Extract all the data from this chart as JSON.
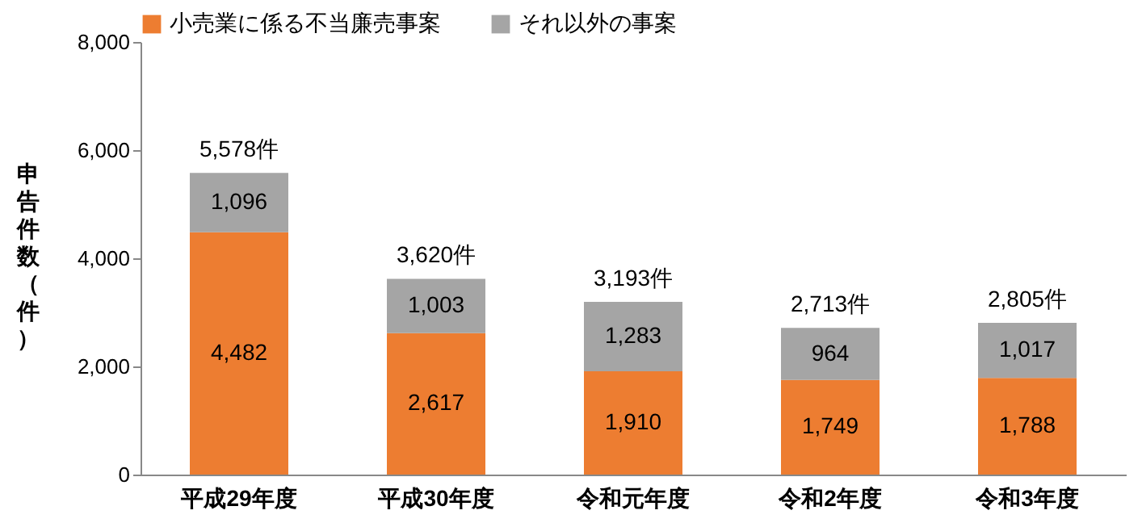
{
  "chart_data": {
    "type": "bar",
    "stacked": true,
    "ylabel": "申告件数（件）",
    "categories": [
      "平成29年度",
      "平成30年度",
      "令和元年度",
      "令和2年度",
      "令和3年度"
    ],
    "series": [
      {
        "name": "小売業に係る不当廉売事案",
        "color": "#ed7d31",
        "values": [
          4482,
          2617,
          1910,
          1749,
          1788
        ],
        "value_labels": [
          "4,482",
          "2,617",
          "1,910",
          "1,749",
          "1,788"
        ]
      },
      {
        "name": "それ以外の事案",
        "color": "#a5a5a5",
        "values": [
          1096,
          1003,
          1283,
          964,
          1017
        ],
        "value_labels": [
          "1,096",
          "1,003",
          "1,283",
          "964",
          "1,017"
        ]
      }
    ],
    "totals": [
      "5,578件",
      "3,620件",
      "3,193件",
      "2,713件",
      "2,805件"
    ],
    "ylim": [
      0,
      8000
    ],
    "yticks": [
      {
        "value": 0,
        "label": "0"
      },
      {
        "value": 2000,
        "label": "2,000"
      },
      {
        "value": 4000,
        "label": "4,000"
      },
      {
        "value": 6000,
        "label": "6,000"
      },
      {
        "value": 8000,
        "label": "8,000"
      }
    ],
    "grid": false,
    "legend": "top"
  }
}
